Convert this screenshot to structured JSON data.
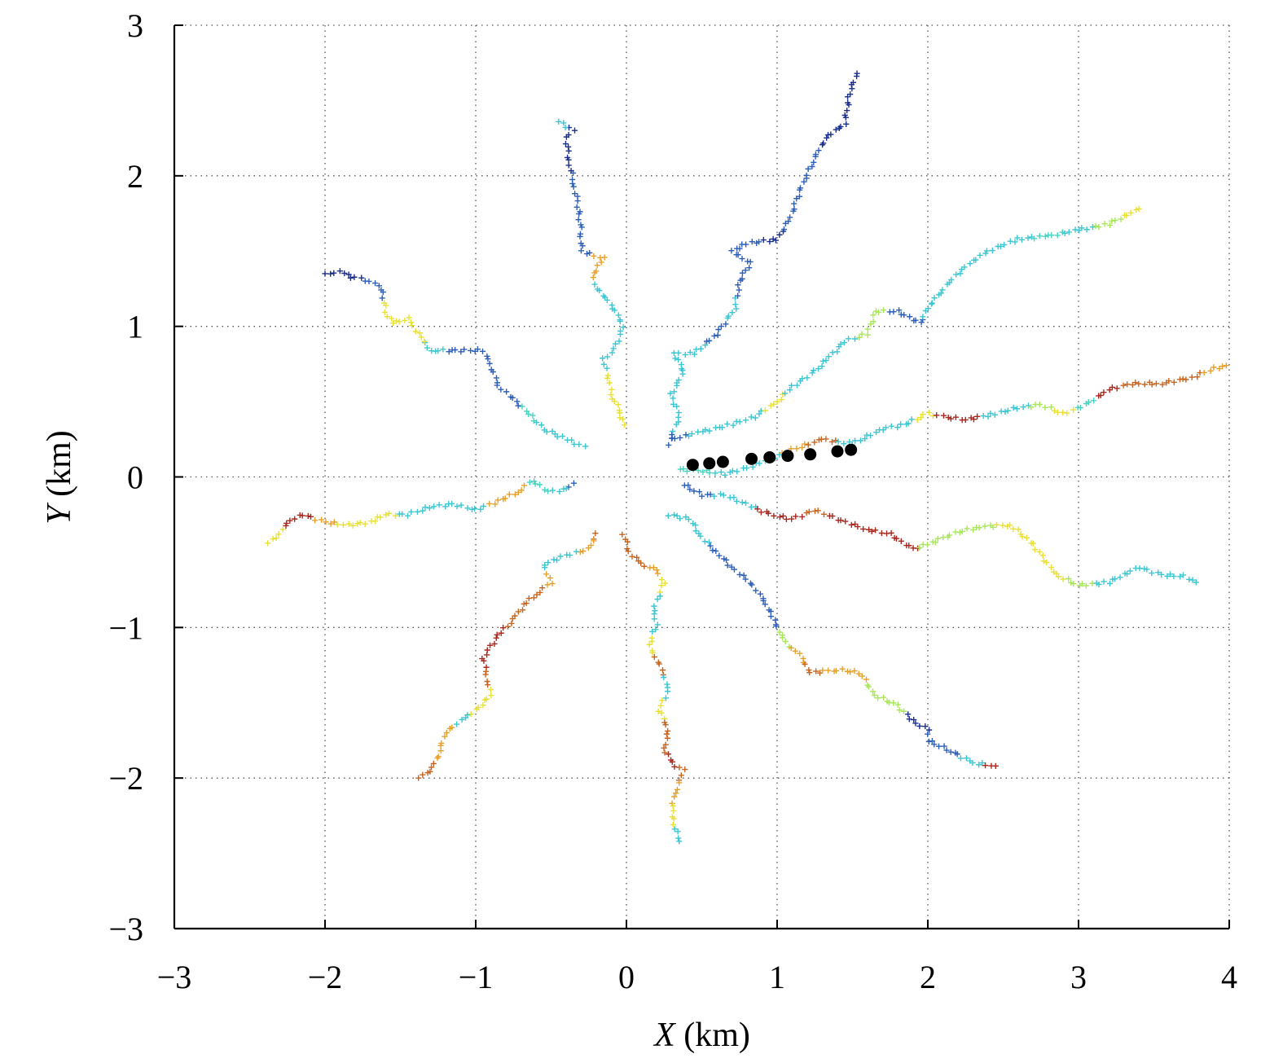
{
  "chart_data": {
    "type": "scatter",
    "title": "",
    "xlabel": {
      "var": "X",
      "unit": " (km)"
    },
    "ylabel": {
      "var": "Y",
      "unit": " (km)"
    },
    "xlim": [
      -3,
      4
    ],
    "ylim": [
      -3,
      3
    ],
    "xticks": [
      -3,
      -2,
      -1,
      0,
      1,
      2,
      3,
      4
    ],
    "yticks": [
      -3,
      -2,
      -1,
      0,
      1,
      2,
      3
    ],
    "xtick_labels": [
      "−3",
      "−2",
      "−1",
      "0",
      "1",
      "2",
      "3",
      "4"
    ],
    "ytick_labels": [
      "−3",
      "−2",
      "−1",
      "0",
      "1",
      "2",
      "3"
    ],
    "grid": true,
    "marker_colors": {
      "dark_blue": "#1a2f8c",
      "blue": "#2e5fb8",
      "cyan": "#3cc6d2",
      "teal": "#45d4c0",
      "light_green": "#a8e65a",
      "yellow": "#e8e034",
      "orange": "#e8a02c",
      "dark_orange": "#c8641e",
      "red": "#a8281e"
    },
    "series": [
      {
        "marker": "plus",
        "points": [
          [
            0.28,
            0.22
          ],
          [
            0.35,
            0.4
          ],
          [
            0.3,
            0.55
          ],
          [
            0.38,
            0.7
          ],
          [
            0.32,
            0.82
          ],
          [
            0.45,
            0.82
          ],
          [
            0.6,
            0.95
          ],
          [
            0.72,
            1.12
          ],
          [
            0.75,
            1.3
          ],
          [
            0.82,
            1.42
          ],
          [
            0.7,
            1.5
          ],
          [
            0.8,
            1.55
          ],
          [
            1.0,
            1.58
          ],
          [
            1.08,
            1.7
          ],
          [
            1.15,
            1.9
          ],
          [
            1.25,
            2.12
          ],
          [
            1.32,
            2.25
          ],
          [
            1.45,
            2.35
          ],
          [
            1.48,
            2.55
          ],
          [
            1.53,
            2.68
          ]
        ],
        "colors": [
          "blue",
          "cyan",
          "cyan",
          "cyan",
          "cyan",
          "cyan",
          "blue",
          "cyan",
          "blue",
          "blue",
          "blue",
          "blue",
          "dark_blue",
          "blue",
          "blue",
          "blue",
          "dark_blue",
          "dark_blue",
          "dark_blue",
          "dark_blue"
        ]
      },
      {
        "marker": "plus",
        "points": [
          [
            -0.02,
            0.35
          ],
          [
            -0.05,
            0.45
          ],
          [
            -0.1,
            0.55
          ],
          [
            -0.12,
            0.65
          ],
          [
            -0.15,
            0.78
          ],
          [
            -0.08,
            0.85
          ],
          [
            -0.02,
            1.0
          ],
          [
            -0.1,
            1.15
          ],
          [
            -0.2,
            1.25
          ],
          [
            -0.22,
            1.35
          ],
          [
            -0.15,
            1.45
          ],
          [
            -0.3,
            1.5
          ],
          [
            -0.3,
            1.62
          ],
          [
            -0.32,
            1.8
          ],
          [
            -0.35,
            1.95
          ],
          [
            -0.38,
            2.1
          ],
          [
            -0.4,
            2.25
          ],
          [
            -0.35,
            2.3
          ],
          [
            -0.45,
            2.36
          ]
        ],
        "colors": [
          "yellow",
          "yellow",
          "yellow",
          "yellow",
          "cyan",
          "cyan",
          "cyan",
          "cyan",
          "cyan",
          "orange",
          "orange",
          "blue",
          "blue",
          "blue",
          "blue",
          "dark_blue",
          "dark_blue",
          "dark_blue",
          "cyan"
        ]
      },
      {
        "marker": "plus",
        "points": [
          [
            -0.28,
            0.2
          ],
          [
            -0.4,
            0.25
          ],
          [
            -0.55,
            0.32
          ],
          [
            -0.65,
            0.42
          ],
          [
            -0.75,
            0.52
          ],
          [
            -0.85,
            0.6
          ],
          [
            -0.9,
            0.75
          ],
          [
            -0.95,
            0.84
          ],
          [
            -1.1,
            0.84
          ],
          [
            -1.3,
            0.84
          ],
          [
            -1.38,
            0.95
          ],
          [
            -1.45,
            1.05
          ],
          [
            -1.55,
            1.02
          ],
          [
            -1.6,
            1.1
          ],
          [
            -1.62,
            1.25
          ],
          [
            -1.7,
            1.3
          ],
          [
            -1.8,
            1.32
          ],
          [
            -1.9,
            1.36
          ],
          [
            -2.0,
            1.35
          ]
        ],
        "colors": [
          "cyan",
          "cyan",
          "cyan",
          "teal",
          "blue",
          "blue",
          "blue",
          "blue",
          "blue",
          "cyan",
          "yellow",
          "yellow",
          "yellow",
          "yellow",
          "blue",
          "blue",
          "dark_blue",
          "dark_blue",
          "dark_blue"
        ]
      },
      {
        "marker": "plus",
        "points": [
          [
            -0.35,
            -0.05
          ],
          [
            -0.45,
            -0.1
          ],
          [
            -0.55,
            -0.08
          ],
          [
            -0.62,
            -0.02
          ],
          [
            -0.72,
            -0.1
          ],
          [
            -0.85,
            -0.16
          ],
          [
            -1.0,
            -0.22
          ],
          [
            -1.15,
            -0.18
          ],
          [
            -1.3,
            -0.2
          ],
          [
            -1.45,
            -0.25
          ],
          [
            -1.6,
            -0.25
          ],
          [
            -1.7,
            -0.3
          ],
          [
            -1.85,
            -0.32
          ],
          [
            -2.0,
            -0.3
          ],
          [
            -2.15,
            -0.25
          ],
          [
            -2.25,
            -0.3
          ],
          [
            -2.3,
            -0.38
          ],
          [
            -2.38,
            -0.44
          ]
        ],
        "colors": [
          "blue",
          "cyan",
          "teal",
          "teal",
          "orange",
          "orange",
          "cyan",
          "cyan",
          "cyan",
          "cyan",
          "yellow",
          "yellow",
          "yellow",
          "orange",
          "red",
          "red",
          "yellow",
          "yellow"
        ]
      },
      {
        "marker": "plus",
        "points": [
          [
            -0.2,
            -0.38
          ],
          [
            -0.25,
            -0.48
          ],
          [
            -0.4,
            -0.52
          ],
          [
            -0.55,
            -0.58
          ],
          [
            -0.5,
            -0.7
          ],
          [
            -0.6,
            -0.78
          ],
          [
            -0.68,
            -0.85
          ],
          [
            -0.75,
            -0.95
          ],
          [
            -0.85,
            -1.05
          ],
          [
            -0.95,
            -1.2
          ],
          [
            -0.92,
            -1.35
          ],
          [
            -0.9,
            -1.45
          ],
          [
            -1.0,
            -1.55
          ],
          [
            -1.1,
            -1.62
          ],
          [
            -1.2,
            -1.7
          ],
          [
            -1.25,
            -1.85
          ],
          [
            -1.3,
            -1.95
          ],
          [
            -1.38,
            -2.0
          ]
        ],
        "colors": [
          "dark_orange",
          "orange",
          "cyan",
          "cyan",
          "orange",
          "dark_orange",
          "dark_orange",
          "dark_orange",
          "red",
          "red",
          "dark_orange",
          "yellow",
          "yellow",
          "cyan",
          "orange",
          "orange",
          "dark_orange",
          "dark_orange"
        ]
      },
      {
        "marker": "plus",
        "points": [
          [
            -0.02,
            -0.38
          ],
          [
            0.02,
            -0.5
          ],
          [
            0.1,
            -0.58
          ],
          [
            0.2,
            -0.62
          ],
          [
            0.25,
            -0.7
          ],
          [
            0.18,
            -0.88
          ],
          [
            0.2,
            -0.98
          ],
          [
            0.15,
            -1.12
          ],
          [
            0.22,
            -1.25
          ],
          [
            0.28,
            -1.4
          ],
          [
            0.22,
            -1.55
          ],
          [
            0.28,
            -1.68
          ],
          [
            0.25,
            -1.8
          ],
          [
            0.3,
            -1.9
          ],
          [
            0.38,
            -1.95
          ],
          [
            0.32,
            -2.1
          ],
          [
            0.3,
            -2.25
          ],
          [
            0.35,
            -2.42
          ]
        ],
        "colors": [
          "dark_orange",
          "dark_orange",
          "dark_orange",
          "orange",
          "yellow",
          "cyan",
          "cyan",
          "yellow",
          "dark_orange",
          "cyan",
          "yellow",
          "dark_orange",
          "dark_orange",
          "red",
          "dark_orange",
          "orange",
          "yellow",
          "cyan"
        ]
      },
      {
        "marker": "plus",
        "points": [
          [
            0.28,
            -0.25
          ],
          [
            0.42,
            -0.28
          ],
          [
            0.5,
            -0.4
          ],
          [
            0.6,
            -0.5
          ],
          [
            0.7,
            -0.6
          ],
          [
            0.82,
            -0.7
          ],
          [
            0.9,
            -0.8
          ],
          [
            0.98,
            -0.95
          ],
          [
            1.05,
            -1.1
          ],
          [
            1.15,
            -1.18
          ],
          [
            1.22,
            -1.3
          ],
          [
            1.4,
            -1.28
          ],
          [
            1.55,
            -1.3
          ],
          [
            1.65,
            -1.45
          ],
          [
            1.8,
            -1.52
          ],
          [
            1.9,
            -1.62
          ],
          [
            2.0,
            -1.68
          ],
          [
            2.0,
            -1.75
          ],
          [
            2.15,
            -1.82
          ],
          [
            2.3,
            -1.9
          ],
          [
            2.45,
            -1.92
          ]
        ],
        "colors": [
          "cyan",
          "cyan",
          "cyan",
          "blue",
          "blue",
          "blue",
          "blue",
          "blue",
          "light_green",
          "orange",
          "dark_orange",
          "orange",
          "orange",
          "light_green",
          "light_green",
          "dark_blue",
          "dark_blue",
          "blue",
          "blue",
          "cyan",
          "red"
        ]
      },
      {
        "marker": "plus",
        "points": [
          [
            0.38,
            -0.05
          ],
          [
            0.5,
            -0.12
          ],
          [
            0.65,
            -0.12
          ],
          [
            0.8,
            -0.18
          ],
          [
            0.95,
            -0.25
          ],
          [
            1.1,
            -0.28
          ],
          [
            1.25,
            -0.22
          ],
          [
            1.4,
            -0.28
          ],
          [
            1.6,
            -0.35
          ],
          [
            1.75,
            -0.38
          ],
          [
            1.9,
            -0.48
          ],
          [
            2.0,
            -0.45
          ],
          [
            2.15,
            -0.38
          ],
          [
            2.35,
            -0.33
          ],
          [
            2.55,
            -0.32
          ],
          [
            2.7,
            -0.45
          ],
          [
            2.85,
            -0.65
          ],
          [
            3.0,
            -0.72
          ],
          [
            3.2,
            -0.7
          ],
          [
            3.4,
            -0.6
          ],
          [
            3.55,
            -0.65
          ],
          [
            3.7,
            -0.66
          ],
          [
            3.78,
            -0.7
          ]
        ],
        "colors": [
          "blue",
          "blue",
          "cyan",
          "cyan",
          "red",
          "red",
          "dark_orange",
          "red",
          "red",
          "red",
          "red",
          "light_green",
          "light_green",
          "light_green",
          "yellow",
          "yellow",
          "yellow",
          "light_green",
          "cyan",
          "cyan",
          "cyan",
          "cyan",
          "cyan"
        ]
      },
      {
        "marker": "plus",
        "points": [
          [
            0.35,
            0.05
          ],
          [
            0.5,
            0.04
          ],
          [
            0.65,
            0.02
          ],
          [
            0.8,
            0.06
          ],
          [
            0.95,
            0.12
          ],
          [
            1.1,
            0.18
          ],
          [
            1.3,
            0.25
          ],
          [
            1.5,
            0.22
          ],
          [
            1.7,
            0.32
          ],
          [
            1.85,
            0.35
          ],
          [
            2.0,
            0.42
          ],
          [
            2.1,
            0.4
          ],
          [
            2.25,
            0.38
          ],
          [
            2.45,
            0.42
          ],
          [
            2.6,
            0.46
          ],
          [
            2.75,
            0.48
          ],
          [
            2.9,
            0.42
          ],
          [
            3.05,
            0.48
          ],
          [
            3.2,
            0.58
          ],
          [
            3.35,
            0.62
          ],
          [
            3.55,
            0.62
          ],
          [
            3.75,
            0.66
          ],
          [
            3.9,
            0.72
          ],
          [
            3.98,
            0.74
          ]
        ],
        "colors": [
          "teal",
          "teal",
          "cyan",
          "cyan",
          "cyan",
          "orange",
          "dark_orange",
          "cyan",
          "cyan",
          "cyan",
          "yellow",
          "red",
          "red",
          "cyan",
          "cyan",
          "light_green",
          "yellow",
          "teal",
          "red",
          "dark_orange",
          "dark_orange",
          "dark_orange",
          "orange",
          "orange"
        ]
      },
      {
        "marker": "plus",
        "points": [
          [
            0.3,
            0.25
          ],
          [
            0.5,
            0.3
          ],
          [
            0.7,
            0.35
          ],
          [
            0.85,
            0.4
          ],
          [
            1.0,
            0.5
          ],
          [
            1.1,
            0.6
          ],
          [
            1.25,
            0.7
          ],
          [
            1.35,
            0.8
          ],
          [
            1.45,
            0.9
          ],
          [
            1.6,
            0.95
          ],
          [
            1.65,
            1.1
          ],
          [
            1.8,
            1.1
          ],
          [
            1.95,
            1.02
          ],
          [
            2.0,
            1.12
          ],
          [
            2.1,
            1.25
          ],
          [
            2.25,
            1.4
          ],
          [
            2.4,
            1.5
          ],
          [
            2.6,
            1.58
          ],
          [
            2.8,
            1.6
          ],
          [
            3.0,
            1.64
          ],
          [
            3.2,
            1.68
          ],
          [
            3.4,
            1.78
          ]
        ],
        "colors": [
          "blue",
          "cyan",
          "cyan",
          "cyan",
          "yellow",
          "cyan",
          "cyan",
          "cyan",
          "cyan",
          "light_green",
          "light_green",
          "blue",
          "blue",
          "cyan",
          "cyan",
          "cyan",
          "cyan",
          "cyan",
          "teal",
          "cyan",
          "light_green",
          "yellow"
        ]
      }
    ],
    "highlight_points": {
      "marker": "filled-circle",
      "color": "#000000",
      "points": [
        [
          0.44,
          0.08
        ],
        [
          0.55,
          0.09
        ],
        [
          0.64,
          0.1
        ],
        [
          0.83,
          0.12
        ],
        [
          0.95,
          0.13
        ],
        [
          1.07,
          0.14
        ],
        [
          1.22,
          0.15
        ],
        [
          1.4,
          0.17
        ],
        [
          1.49,
          0.18
        ]
      ]
    }
  }
}
